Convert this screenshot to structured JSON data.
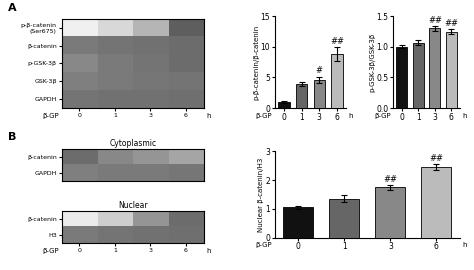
{
  "chart_data": [
    {
      "type": "heatmap",
      "title": "A",
      "categories": [
        "0",
        "1",
        "3",
        "6"
      ],
      "row_labels": [
        "p-β-catenin\n(Ser675)",
        "β-catenin",
        "p-GSK-3β",
        "GSK-3β",
        "GAPDH"
      ],
      "cells": [
        [
          0.12,
          0.25,
          0.4,
          0.7
        ],
        [
          0.6,
          0.62,
          0.63,
          0.65
        ],
        [
          0.55,
          0.6,
          0.62,
          0.65
        ],
        [
          0.58,
          0.6,
          0.61,
          0.62
        ],
        [
          0.62,
          0.63,
          0.63,
          0.64
        ]
      ],
      "color_range": [
        0,
        1
      ],
      "xlabel_start": "β-GP",
      "xlabel_end": "h"
    },
    {
      "type": "heatmap",
      "title": "B",
      "subtitle": "Cytoplasmic",
      "categories": [
        "0",
        "1",
        "3",
        "6"
      ],
      "row_labels": [
        "β-catenin",
        "GAPDH"
      ],
      "cells": [
        [
          0.65,
          0.55,
          0.5,
          0.45
        ],
        [
          0.58,
          0.6,
          0.6,
          0.61
        ]
      ],
      "color_range": [
        0,
        1
      ],
      "tick_labels": "y"
    },
    {
      "type": "heatmap",
      "subtitle": "Nuclear",
      "categories": [
        "0",
        "1",
        "3",
        "6"
      ],
      "row_labels": [
        "β-catenin",
        "H3"
      ],
      "cells": [
        [
          0.15,
          0.3,
          0.5,
          0.65
        ],
        [
          0.6,
          0.62,
          0.63,
          0.64
        ]
      ],
      "color_range": [
        0,
        1
      ],
      "xlabel_start": "β-GP",
      "xlabel_end": "h"
    },
    {
      "type": "bar",
      "ylabel": "p-β-catenin/β-catenin",
      "categories": [
        "0",
        "1",
        "3",
        "6"
      ],
      "values": [
        1.0,
        3.9,
        4.6,
        8.8
      ],
      "errors": [
        0.12,
        0.3,
        0.5,
        1.1
      ],
      "colors": [
        "#111111",
        "#666666",
        "#888888",
        "#bbbbbb"
      ],
      "ylim": [
        0,
        15
      ],
      "yticks": [
        0,
        5,
        10,
        15
      ],
      "annotations": [
        {
          "category": "3",
          "text": "#"
        },
        {
          "category": "6",
          "text": "##"
        }
      ],
      "xlabel_start": "β-GP",
      "xlabel_end": "h"
    },
    {
      "type": "bar",
      "ylabel": "p-GSK-3β/GSK-3β",
      "categories": [
        "0",
        "1",
        "3",
        "6"
      ],
      "values": [
        1.0,
        1.07,
        1.3,
        1.25
      ],
      "errors": [
        0.025,
        0.035,
        0.04,
        0.04
      ],
      "colors": [
        "#111111",
        "#666666",
        "#888888",
        "#bbbbbb"
      ],
      "ylim": [
        0.0,
        1.5
      ],
      "yticks": [
        0.0,
        0.5,
        1.0,
        1.5
      ],
      "annotations": [
        {
          "category": "3",
          "text": "##"
        },
        {
          "category": "6",
          "text": "##"
        }
      ],
      "xlabel_start": "β-GP",
      "xlabel_end": "h"
    },
    {
      "type": "bar",
      "ylabel": "Nuclear β-catenin/H3",
      "categories": [
        "0",
        "1",
        "3",
        "6"
      ],
      "values": [
        1.05,
        1.35,
        1.75,
        2.45
      ],
      "errors": [
        0.05,
        0.12,
        0.08,
        0.1
      ],
      "colors": [
        "#111111",
        "#666666",
        "#888888",
        "#bbbbbb"
      ],
      "ylim": [
        0,
        3
      ],
      "yticks": [
        0,
        1,
        2,
        3
      ],
      "annotations": [
        {
          "category": "3",
          "text": "##"
        },
        {
          "category": "6",
          "text": "##"
        }
      ],
      "xlabel_start": "β-GP",
      "xlabel_end": "h"
    }
  ]
}
